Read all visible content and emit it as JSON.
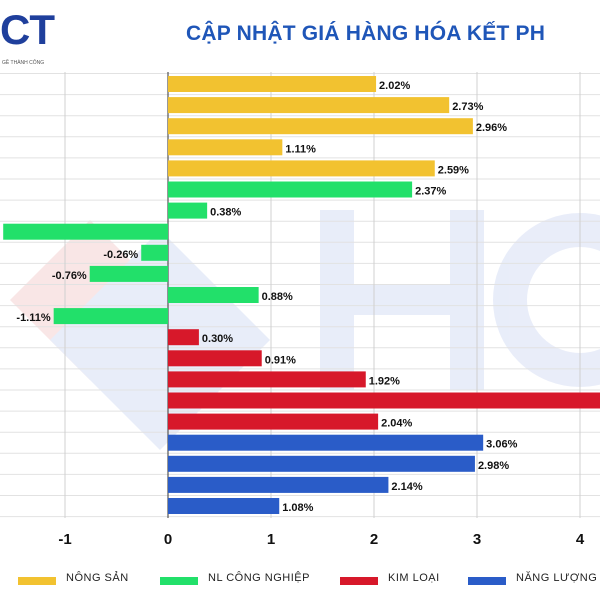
{
  "logo": {
    "text": "CT",
    "subtitle": "GỀ THÀNH CÔNG"
  },
  "title": "CẬP NHẬT GIÁ HÀNG HÓA KẾT PH",
  "legend": [
    {
      "label": "NÔNG SẢN",
      "color": "#f2c230"
    },
    {
      "label": "NL CÔNG NGHIỆP",
      "color": "#22e06a"
    },
    {
      "label": "KIM LOẠI",
      "color": "#d7182a"
    },
    {
      "label": "NĂNG LƯỢNG",
      "color": "#2a5cc8"
    }
  ],
  "chart_data": {
    "type": "bar",
    "orientation": "horizontal",
    "xlim": [
      -1.6,
      4.2
    ],
    "xticks": [
      "-1",
      "0",
      "1",
      "2",
      "3",
      "4"
    ],
    "grid": true,
    "legend_position": "bottom",
    "bars": [
      {
        "value": 2.02,
        "label": "2.02%",
        "series": "NÔNG SẢN"
      },
      {
        "value": 2.73,
        "label": "2.73%",
        "series": "NÔNG SẢN"
      },
      {
        "value": 2.96,
        "label": "2.96%",
        "series": "NÔNG SẢN"
      },
      {
        "value": 1.11,
        "label": "1.11%",
        "series": "NÔNG SẢN"
      },
      {
        "value": 2.59,
        "label": "2.59%",
        "series": "NÔNG SẢN"
      },
      {
        "value": 2.37,
        "label": "2.37%",
        "series": "NL CÔNG NGHIỆP"
      },
      {
        "value": 0.38,
        "label": "0.38%",
        "series": "NL CÔNG NGHIỆP"
      },
      {
        "value": -1.6,
        "label": "%",
        "series": "NL CÔNG NGHIỆP"
      },
      {
        "value": -0.26,
        "label": "-0.26%",
        "series": "NL CÔNG NGHIỆP"
      },
      {
        "value": -0.76,
        "label": "-0.76%",
        "series": "NL CÔNG NGHIỆP"
      },
      {
        "value": 0.88,
        "label": "0.88%",
        "series": "NL CÔNG NGHIỆP"
      },
      {
        "value": -1.11,
        "label": "-1.11%",
        "series": "NL CÔNG NGHIỆP"
      },
      {
        "value": 0.3,
        "label": "0.30%",
        "series": "KIM LOẠI"
      },
      {
        "value": 0.91,
        "label": "0.91%",
        "series": "KIM LOẠI"
      },
      {
        "value": 1.92,
        "label": "1.92%",
        "series": "KIM LOẠI"
      },
      {
        "value": 4.2,
        "label": "",
        "series": "KIM LOẠI"
      },
      {
        "value": 2.04,
        "label": "2.04%",
        "series": "KIM LOẠI"
      },
      {
        "value": 3.06,
        "label": "3.06%",
        "series": "NĂNG LƯỢNG"
      },
      {
        "value": 2.98,
        "label": "2.98%",
        "series": "NĂNG LƯỢNG"
      },
      {
        "value": 2.14,
        "label": "2.14%",
        "series": "NĂNG LƯỢNG"
      },
      {
        "value": 1.08,
        "label": "1.08%",
        "series": "NĂNG LƯỢNG"
      }
    ]
  }
}
